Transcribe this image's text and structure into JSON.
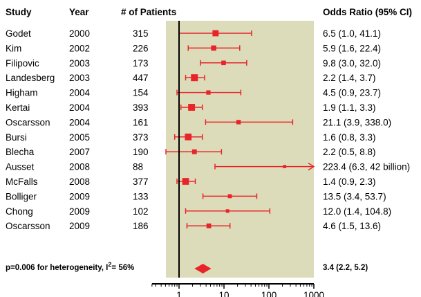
{
  "headers": {
    "study": "Study",
    "year": "Year",
    "patients": "# of Patients",
    "or": "Odds Ratio (95% CI)"
  },
  "heterogeneity": {
    "prefix": "p=0.006 for heterogeneity, I",
    "sup": "2",
    "suffix": "= 56%"
  },
  "colors": {
    "marker": "#e8242a",
    "panel": "#dcdcba",
    "line": "#000000"
  },
  "chart_data": {
    "type": "forest",
    "x_scale": "log",
    "xlim": [
      0.25,
      1000
    ],
    "xticks": [
      1,
      10,
      100,
      1000
    ],
    "xtick_labels": [
      "1",
      "10",
      "100",
      "1000"
    ],
    "reference_line": 1,
    "studies": [
      {
        "study": "Godet",
        "year": "2000",
        "patients": "315",
        "or": 6.5,
        "lo": 1.0,
        "hi": 41.1,
        "label": "6.5 (1.0, 41.1)"
      },
      {
        "study": "Kim",
        "year": "2002",
        "patients": "226",
        "or": 5.9,
        "lo": 1.6,
        "hi": 22.4,
        "label": "5.9 (1.6, 22.4)"
      },
      {
        "study": "Filipovic",
        "year": "2003",
        "patients": "173",
        "or": 9.8,
        "lo": 3.0,
        "hi": 32.0,
        "label": "9.8 (3.0, 32.0)"
      },
      {
        "study": "Landesberg",
        "year": "2003",
        "patients": "447",
        "or": 2.2,
        "lo": 1.4,
        "hi": 3.7,
        "label": "2.2 (1.4, 3.7)"
      },
      {
        "study": "Higham",
        "year": "2004",
        "patients": "154",
        "or": 4.5,
        "lo": 0.9,
        "hi": 23.7,
        "label": "4.5 (0.9, 23.7)"
      },
      {
        "study": "Kertai",
        "year": "2004",
        "patients": "393",
        "or": 1.9,
        "lo": 1.1,
        "hi": 3.3,
        "label": "1.9 (1.1, 3.3)"
      },
      {
        "study": "Oscarsson",
        "year": "2004",
        "patients": "161",
        "or": 21.1,
        "lo": 3.9,
        "hi": 338.0,
        "label": "21.1 (3.9, 338.0)"
      },
      {
        "study": "Bursi",
        "year": "2005",
        "patients": "373",
        "or": 1.6,
        "lo": 0.8,
        "hi": 3.3,
        "label": "1.6 (0.8, 3.3)"
      },
      {
        "study": "Blecha",
        "year": "2007",
        "patients": "190",
        "or": 2.2,
        "lo": 0.5,
        "hi": 8.8,
        "label": "2.2 (0.5, 8.8)"
      },
      {
        "study": "Ausset",
        "year": "2008",
        "patients": "88",
        "or": 223.4,
        "lo": 6.3,
        "hi": 42000000000,
        "arrow": true,
        "label": "223.4 (6.3, 42 billion)"
      },
      {
        "study": "McFalls",
        "year": "2008",
        "patients": "377",
        "or": 1.4,
        "lo": 0.9,
        "hi": 2.3,
        "label": "1.4 (0.9, 2.3)"
      },
      {
        "study": "Bolliger",
        "year": "2009",
        "patients": "133",
        "or": 13.5,
        "lo": 3.4,
        "hi": 53.7,
        "label": "13.5 (3.4, 53.7)"
      },
      {
        "study": "Chong",
        "year": "2009",
        "patients": "102",
        "or": 12.0,
        "lo": 1.4,
        "hi": 104.8,
        "label": "12.0 (1.4, 104.8)"
      },
      {
        "study": "Oscarsson",
        "year": "2009",
        "patients": "186",
        "or": 4.6,
        "lo": 1.5,
        "hi": 13.6,
        "label": "4.6 (1.5, 13.6)"
      }
    ],
    "pooled": {
      "or": 3.4,
      "lo": 2.2,
      "hi": 5.2,
      "label": "3.4 (2.2, 5.2)"
    }
  }
}
